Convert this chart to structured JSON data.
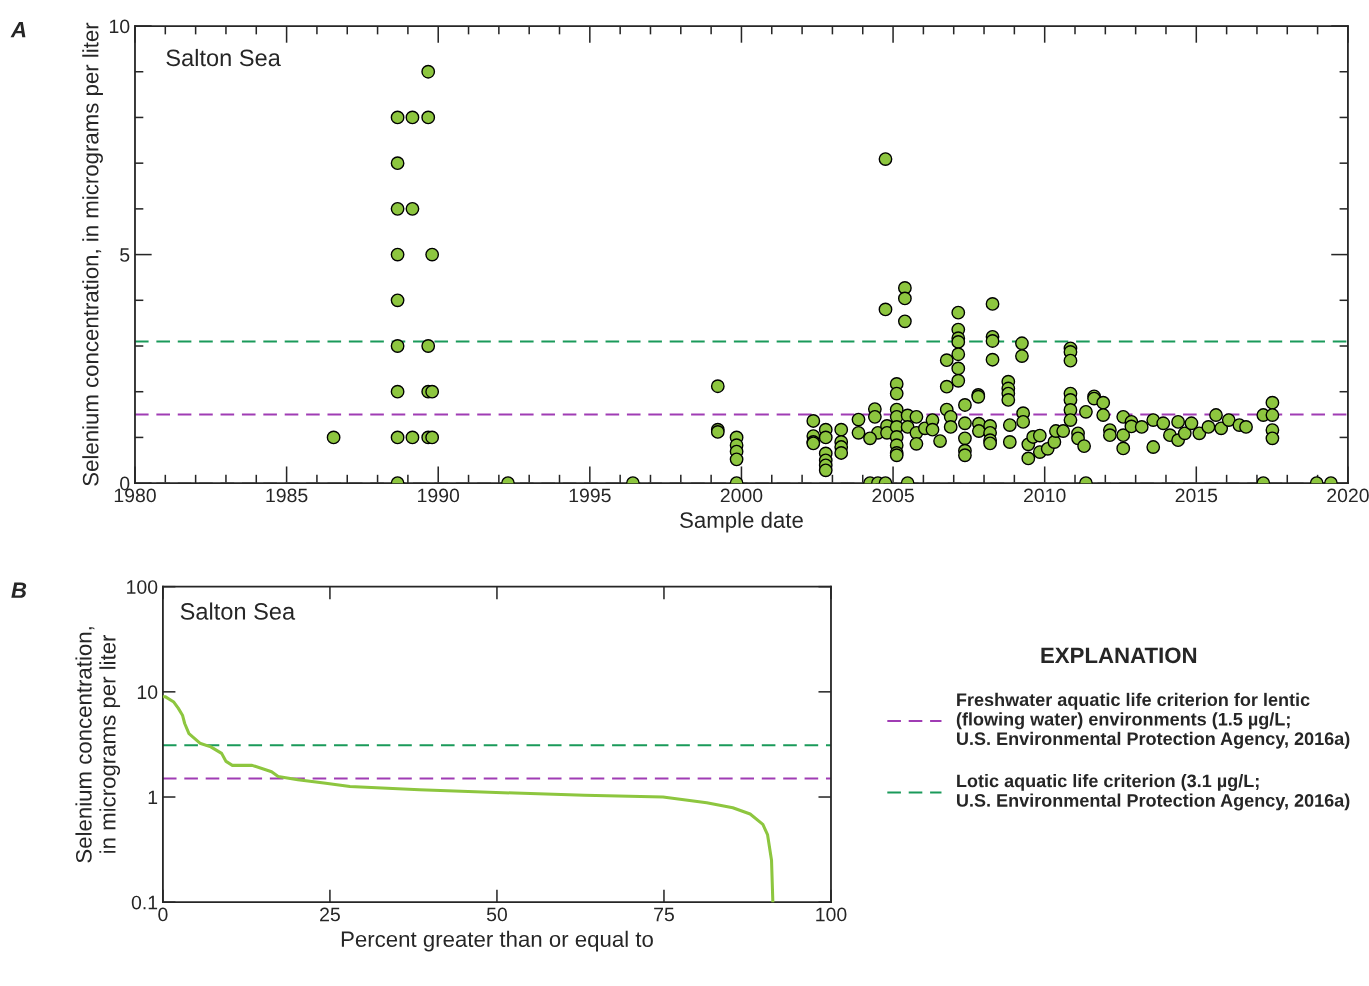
{
  "chart_data": [
    {
      "type": "scatter",
      "xlabel": "Sample date",
      "ylabel": "Selenium concentration, in micrograms per liter",
      "annotations": [
        "A",
        "Salton Sea"
      ],
      "color": "#8dc63f",
      "marker": "circle",
      "grid": false,
      "legend": false,
      "xlim": [
        1980,
        2020
      ],
      "xticks": [
        1980,
        1985,
        1990,
        1995,
        2000,
        2005,
        2010,
        2015,
        2020
      ],
      "ylim": [
        0,
        10
      ],
      "yticks": [
        0,
        5,
        10
      ],
      "x": [
        1986.55,
        1988.66,
        1988.66,
        1988.66,
        1988.66,
        1988.66,
        1988.66,
        1988.66,
        1988.66,
        1988.66,
        1989.15,
        1989.15,
        1989.15,
        1989.67,
        1989.67,
        1989.67,
        1989.67,
        1989.67,
        1989.8,
        1989.8,
        1989.8,
        1992.3,
        1996.42,
        1999.22,
        1999.22,
        1999.22,
        1999.84,
        1999.84,
        1999.84,
        1999.84,
        1999.84,
        2002.37,
        2002.37,
        2002.37,
        2002.37,
        2002.78,
        2002.78,
        2002.78,
        2002.78,
        2002.78,
        2002.78,
        2003.29,
        2003.29,
        2003.29,
        2003.29,
        2003.86,
        2003.86,
        2004.24,
        2004.5,
        2004.75,
        2004.4,
        2004.4,
        2004.5,
        2004.24,
        2004.8,
        2004.8,
        2004.75,
        2004.75,
        2005.12,
        2005.12,
        2005.12,
        2005.12,
        2005.12,
        2005.12,
        2005.12,
        2005.12,
        2005.12,
        2005.39,
        2005.39,
        2005.39,
        2005.48,
        2005.48,
        2005.48,
        2005.77,
        2005.77,
        2005.77,
        2006.05,
        2006.3,
        2006.55,
        2006.3,
        2006.77,
        2006.77,
        2006.77,
        2006.9,
        2006.9,
        2007.15,
        2007.15,
        2007.15,
        2007.15,
        2007.15,
        2007.15,
        2007.15,
        2007.37,
        2007.37,
        2007.37,
        2007.37,
        2007.37,
        2007.81,
        2007.81,
        2007.83,
        2007.83,
        2008.28,
        2008.28,
        2008.28,
        2008.28,
        2008.2,
        2008.2,
        2008.2,
        2008.2,
        2008.8,
        2008.8,
        2008.8,
        2008.8,
        2008.85,
        2008.85,
        2009.25,
        2009.25,
        2009.29,
        2009.29,
        2009.46,
        2009.46,
        2009.62,
        2009.84,
        2009.84,
        2010.1,
        2010.32,
        2010.37,
        2010.61,
        2010.85,
        2010.85,
        2010.85,
        2010.85,
        2010.85,
        2010.85,
        2010.85,
        2011.1,
        2011.1,
        2011.3,
        2011.36,
        2011.36,
        2011.63,
        2011.63,
        2011.93,
        2011.93,
        2012.15,
        2012.15,
        2012.59,
        2012.59,
        2012.59,
        2012.86,
        2012.86,
        2013.2,
        2013.58,
        2013.58,
        2013.91,
        2014.13,
        2014.4,
        2014.4,
        2014.62,
        2014.84,
        2015.1,
        2015.4,
        2015.65,
        2015.82,
        2016.07,
        2016.42,
        2016.64,
        2017.21,
        2017.21,
        2017.51,
        2017.51,
        2017.51,
        2017.51,
        2018.97,
        2019.44
      ],
      "values": [
        1,
        8,
        7,
        6,
        5,
        4,
        3,
        2,
        1,
        0,
        8,
        6,
        1,
        9,
        8,
        3,
        2,
        1,
        5,
        2,
        1,
        0,
        0,
        2.12,
        1.17,
        1.12,
        1.0,
        0.83,
        0.69,
        0.52,
        0,
        1.36,
        1.03,
        0.9,
        0.87,
        1.17,
        1.0,
        0.65,
        0.5,
        0.39,
        0.28,
        1.17,
        0.9,
        0.79,
        0.66,
        1.39,
        1.1,
        0,
        0,
        0,
        1.62,
        1.45,
        1.1,
        0.98,
        1.25,
        1.1,
        7.09,
        3.8,
        2.17,
        1.96,
        1.61,
        1.45,
        1.23,
        1.01,
        0.83,
        0.66,
        0.61,
        4.27,
        4.04,
        3.54,
        0,
        1.48,
        1.23,
        1.45,
        1.1,
        0.86,
        1.2,
        1.38,
        0.92,
        1.17,
        2.69,
        2.11,
        1.61,
        1.45,
        1.23,
        3.73,
        3.36,
        3.17,
        3.09,
        2.82,
        2.51,
        2.24,
        1.71,
        1.31,
        0.98,
        0.71,
        0.61,
        1.93,
        1.89,
        1.3,
        1.14,
        3.92,
        3.2,
        3.11,
        2.7,
        1.25,
        1.1,
        0.94,
        0.87,
        2.22,
        2.07,
        1.96,
        1.82,
        1.27,
        0.9,
        3.06,
        2.78,
        1.53,
        1.34,
        0.54,
        0.85,
        1.01,
        1.04,
        0.68,
        0.75,
        0.9,
        1.14,
        1.14,
        2.95,
        2.87,
        2.68,
        1.96,
        1.82,
        1.6,
        1.38,
        1.09,
        0.98,
        0.81,
        0,
        1.56,
        1.9,
        1.85,
        1.76,
        1.49,
        1.16,
        1.05,
        1.45,
        1.05,
        0.76,
        1.34,
        1.24,
        1.23,
        1.38,
        0.79,
        1.31,
        1.05,
        1.34,
        0.94,
        1.09,
        1.31,
        1.09,
        1.23,
        1.49,
        1.2,
        1.38,
        1.27,
        1.23,
        1.49,
        0,
        1.76,
        1.49,
        1.16,
        0.98,
        0,
        0
      ],
      "ref_lines": [
        {
          "axis": "y",
          "value": 3.1,
          "color": "#1a9a5a",
          "line_style": "dashed"
        },
        {
          "axis": "y",
          "value": 1.5,
          "color": "#a03cb4",
          "line_style": "dashed"
        },
        {
          "axis": "y",
          "value": 0,
          "color": "#999999",
          "line_style": "dashed"
        }
      ]
    },
    {
      "type": "line",
      "xlabel": "Percent greater than or equal to",
      "ylabel": "Selenium concentration,\nin micrograms per liter",
      "annotations": [
        "B",
        "Salton Sea"
      ],
      "color": "#8dc63f",
      "marker": "none",
      "line_style": "solid",
      "grid": false,
      "log": true,
      "legend": "right",
      "legend_title": "EXPLANATION",
      "xlim": [
        0,
        100
      ],
      "xticks": [
        0,
        25,
        50,
        75,
        100
      ],
      "ylim": [
        0.1,
        100
      ],
      "yticks": [
        0.1,
        1,
        10,
        100
      ],
      "x": [
        0,
        0.33,
        1.63,
        2.29,
        2.93,
        3.26,
        3.9,
        5.54,
        7.17,
        8.79,
        9.45,
        10.4,
        13.35,
        16.27,
        17.25,
        20.2,
        24.1,
        28,
        38.4,
        52.7,
        63.1,
        74.85,
        81.4,
        85.3,
        87.9,
        89.8,
        90.5,
        91.1,
        91.3
      ],
      "values": [
        9,
        9,
        8,
        7,
        6,
        5,
        4,
        3.25,
        3,
        2.6,
        2.18,
        2,
        2,
        1.74,
        1.57,
        1.46,
        1.36,
        1.26,
        1.17,
        1.09,
        1.04,
        1.0,
        0.88,
        0.79,
        0.69,
        0.55,
        0.44,
        0.25,
        0.1
      ],
      "ref_lines": [
        {
          "axis": "y",
          "value": 1.5,
          "color": "#a03cb4",
          "line_style": "dashed",
          "label": "Freshwater aquatic life criterion for lentic\n(flowing water) environments (1.5 µg/L;\nU.S. Environmental Protection Agency, 2016a)"
        },
        {
          "axis": "y",
          "value": 3.1,
          "color": "#1a9a5a",
          "line_style": "dashed",
          "label": "Lotic aquatic life criterion (3.1 µg/L;\nU.S. Environmental Protection Agency, 2016a)"
        }
      ]
    }
  ]
}
